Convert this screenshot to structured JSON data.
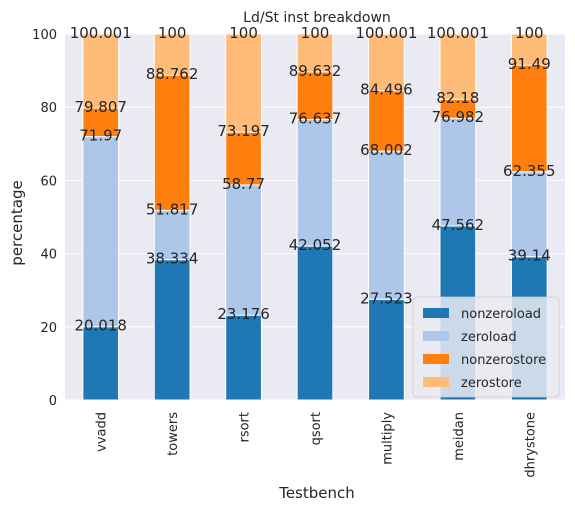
{
  "chart_data": {
    "type": "bar",
    "stacked": true,
    "cumulative_labels": true,
    "title": "Ld/St inst breakdown",
    "xlabel": "Testbench",
    "ylabel": "percentage",
    "ylim": [
      0,
      100
    ],
    "yticks": [
      0,
      20,
      40,
      60,
      80,
      100
    ],
    "grid": true,
    "legend_position": "lower-right",
    "categories": [
      "vvadd",
      "towers",
      "rsort",
      "qsort",
      "multiply",
      "meidan",
      "dhrystone"
    ],
    "series": [
      {
        "name": "nonzeroload",
        "color": "#1f77b4",
        "values": [
          20.018,
          38.334,
          23.176,
          42.052,
          27.523,
          47.562,
          39.14
        ]
      },
      {
        "name": "zeroload",
        "color": "#aec7e8",
        "values": [
          51.952,
          13.483,
          35.594,
          34.585,
          40.479,
          29.42,
          23.215
        ]
      },
      {
        "name": "nonzerostore",
        "color": "#ff7f0e",
        "values": [
          7.837,
          36.945,
          14.427,
          12.995,
          16.494,
          5.198,
          29.135
        ]
      },
      {
        "name": "zerostore",
        "color": "#ffbb78",
        "values": [
          20.194,
          11.238,
          26.803,
          10.368,
          15.505,
          17.821,
          8.51
        ]
      }
    ],
    "cumulative_label_text": [
      [
        "20.018",
        "38.334",
        "23.176",
        "42.052",
        "27.523",
        "47.562",
        "39.14"
      ],
      [
        "71.97",
        "51.817",
        "58.77",
        "76.637",
        "68.002",
        "76.982",
        "62.355"
      ],
      [
        "79.807",
        "88.762",
        "73.197",
        "89.632",
        "84.496",
        "82.18",
        "91.49"
      ],
      [
        "100.001",
        "100",
        "100",
        "100",
        "100.001",
        "100.001",
        "100"
      ]
    ],
    "background_color": "#eaeaf2",
    "grid_color": "#ffffff"
  }
}
